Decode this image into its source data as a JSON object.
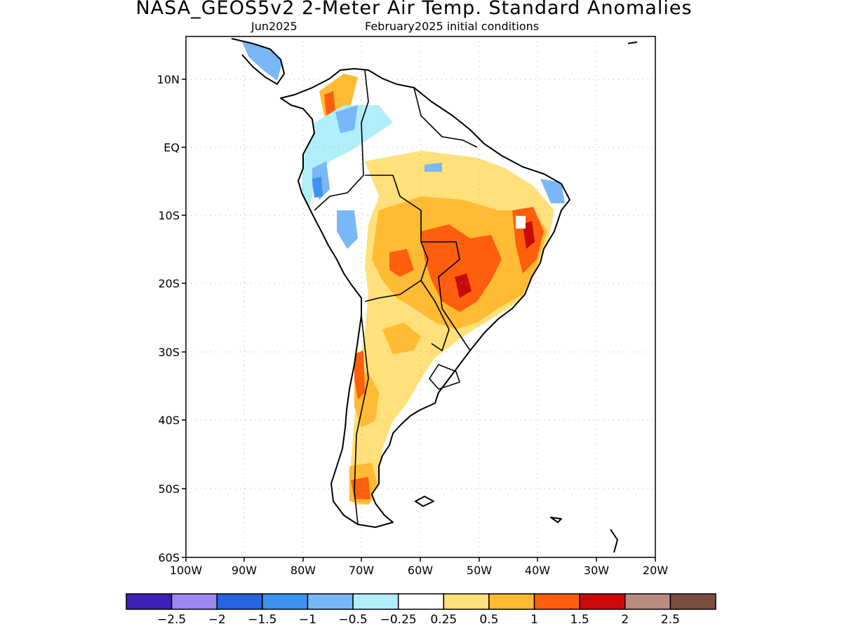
{
  "title": "NASA_GEOS5v2 2-Meter Air Temp. Standard Anomalies",
  "subtitle_left": "Jun2025",
  "subtitle_right": "February2025 initial conditions",
  "map": {
    "lon_range": [
      -100,
      -20
    ],
    "lat_range": [
      -60,
      15
    ],
    "lat_ticks": [
      "10N",
      "EQ",
      "10S",
      "20S",
      "30S",
      "40S",
      "50S",
      "60S"
    ],
    "lon_ticks": [
      "100W",
      "90W",
      "80W",
      "70W",
      "60W",
      "50W",
      "40W",
      "30W",
      "20W"
    ],
    "gridlines": "dotted"
  },
  "colorbar": {
    "colors": [
      "#3d1fb8",
      "#9b86f2",
      "#2563e0",
      "#3f93f0",
      "#7ab7f7",
      "#b0eef9",
      "#ffffff",
      "#ffe07a",
      "#ffbb33",
      "#ff5e0d",
      "#c80a0a",
      "#b88a80",
      "#7a4e42"
    ],
    "labels": [
      "-2.5",
      "-2",
      "-1.5",
      "-1",
      "-0.5",
      "-0.25",
      "0.25",
      "0.5",
      "1",
      "1.5",
      "2",
      "2.5"
    ]
  },
  "anomaly_regions": [
    {
      "level": "0.5",
      "color": "#ffe07a"
    },
    {
      "level": "1",
      "color": "#ffbb33"
    },
    {
      "level": "1.5",
      "color": "#ff5e0d"
    },
    {
      "level": "2",
      "color": "#c80a0a"
    },
    {
      "level": "-0.25",
      "color": "#b0eef9"
    },
    {
      "level": "-0.5",
      "color": "#7ab7f7"
    },
    {
      "level": "-1",
      "color": "#3f93f0"
    }
  ]
}
